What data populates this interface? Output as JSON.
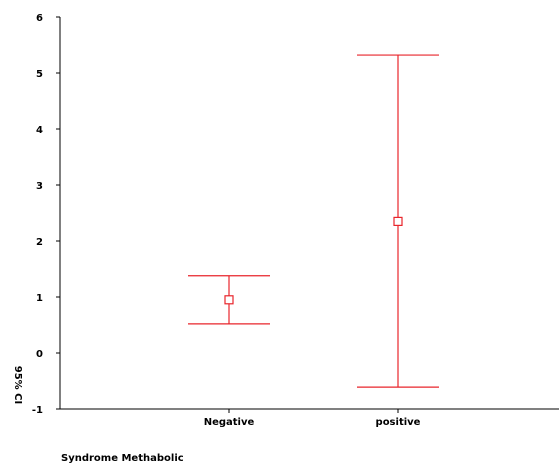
{
  "chart_data": {
    "type": "errorbar",
    "title": "",
    "xlabel": "Syndrome Methabolic",
    "ylabel": "95% CI",
    "categories": [
      "Negative",
      "positive"
    ],
    "series": [
      {
        "points": [
          {
            "category": "Negative",
            "mean": 0.95,
            "lower": 0.52,
            "upper": 1.38
          },
          {
            "category": "positive",
            "mean": 2.35,
            "lower": -0.61,
            "upper": 5.32
          }
        ]
      }
    ],
    "ylim": [
      -1,
      6
    ],
    "yticks": [
      -1,
      0,
      1,
      2,
      3,
      4,
      5,
      6
    ],
    "ytick_labels": [
      "-1",
      "0",
      "1",
      "2",
      "3",
      "4",
      "5",
      "6"
    ],
    "grid": false,
    "colors": {
      "series": "#e8252b",
      "axis": "#000000"
    }
  }
}
